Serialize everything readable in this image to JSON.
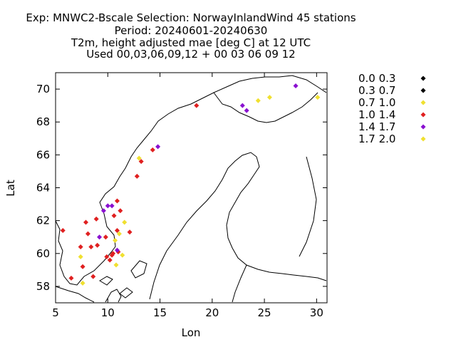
{
  "header": {
    "line1": "Exp: MNWC2-Bscale   Selection: NorwayInlandWind     45 stations",
    "line2": "Period: 20240601-20240630",
    "line3": "T2m, height adjusted mae [deg C] at  12 UTC",
    "line4": "Used 00,03,06,09,12 + 00 03 06 09 12"
  },
  "chart_data": {
    "type": "scatter",
    "xlabel": "Lon",
    "ylabel": "Lat",
    "xlim": [
      5,
      31
    ],
    "ylim": [
      57,
      71
    ],
    "xticks": [
      5,
      10,
      15,
      20,
      25,
      30
    ],
    "yticks": [
      58,
      60,
      62,
      64,
      66,
      68,
      70
    ],
    "legend": [
      {
        "label": "0.0 0.3",
        "color": "#000000"
      },
      {
        "label": "0.3 0.7",
        "color": "#000000"
      },
      {
        "label": "0.7 1.0",
        "color": "#f0e030"
      },
      {
        "label": "1.0 1.4",
        "color": "#e02020"
      },
      {
        "label": "1.4 1.7",
        "color": "#8a10d0"
      },
      {
        "label": "1.7 2.0",
        "color": "#f0e030"
      }
    ],
    "series": [
      {
        "name": "0.7 1.0",
        "color": "#f0e030",
        "points": [
          [
            7.4,
            59.8
          ],
          [
            7.6,
            58.2
          ],
          [
            11.1,
            61.2
          ],
          [
            11.6,
            61.9
          ],
          [
            11.4,
            59.9
          ],
          [
            10.8,
            59.3
          ],
          [
            10.7,
            60.8
          ],
          [
            13.0,
            65.8
          ],
          [
            24.4,
            69.3
          ],
          [
            25.5,
            69.5
          ],
          [
            30.1,
            69.5
          ]
        ]
      },
      {
        "name": "1.0 1.4",
        "color": "#e02020",
        "points": [
          [
            5.7,
            61.4
          ],
          [
            6.5,
            58.5
          ],
          [
            7.4,
            60.4
          ],
          [
            7.6,
            59.2
          ],
          [
            7.9,
            61.9
          ],
          [
            8.1,
            61.2
          ],
          [
            8.4,
            60.4
          ],
          [
            8.6,
            58.6
          ],
          [
            8.9,
            62.1
          ],
          [
            9.0,
            60.5
          ],
          [
            9.8,
            61.0
          ],
          [
            9.9,
            59.8
          ],
          [
            10.2,
            59.6
          ],
          [
            10.4,
            59.9
          ],
          [
            10.5,
            60.0
          ],
          [
            10.6,
            62.3
          ],
          [
            10.9,
            63.2
          ],
          [
            10.9,
            61.4
          ],
          [
            11.0,
            60.1
          ],
          [
            11.2,
            62.6
          ],
          [
            12.1,
            61.3
          ],
          [
            12.8,
            64.7
          ],
          [
            13.2,
            65.6
          ],
          [
            14.3,
            66.3
          ],
          [
            18.5,
            69.0
          ]
        ]
      },
      {
        "name": "1.4 1.7",
        "color": "#8a10d0",
        "points": [
          [
            9.2,
            61.0
          ],
          [
            9.6,
            62.6
          ],
          [
            10.0,
            62.9
          ],
          [
            10.4,
            62.9
          ],
          [
            10.9,
            60.2
          ],
          [
            14.8,
            66.5
          ],
          [
            22.9,
            69.0
          ],
          [
            23.3,
            68.7
          ],
          [
            28.0,
            70.2
          ]
        ]
      }
    ]
  }
}
